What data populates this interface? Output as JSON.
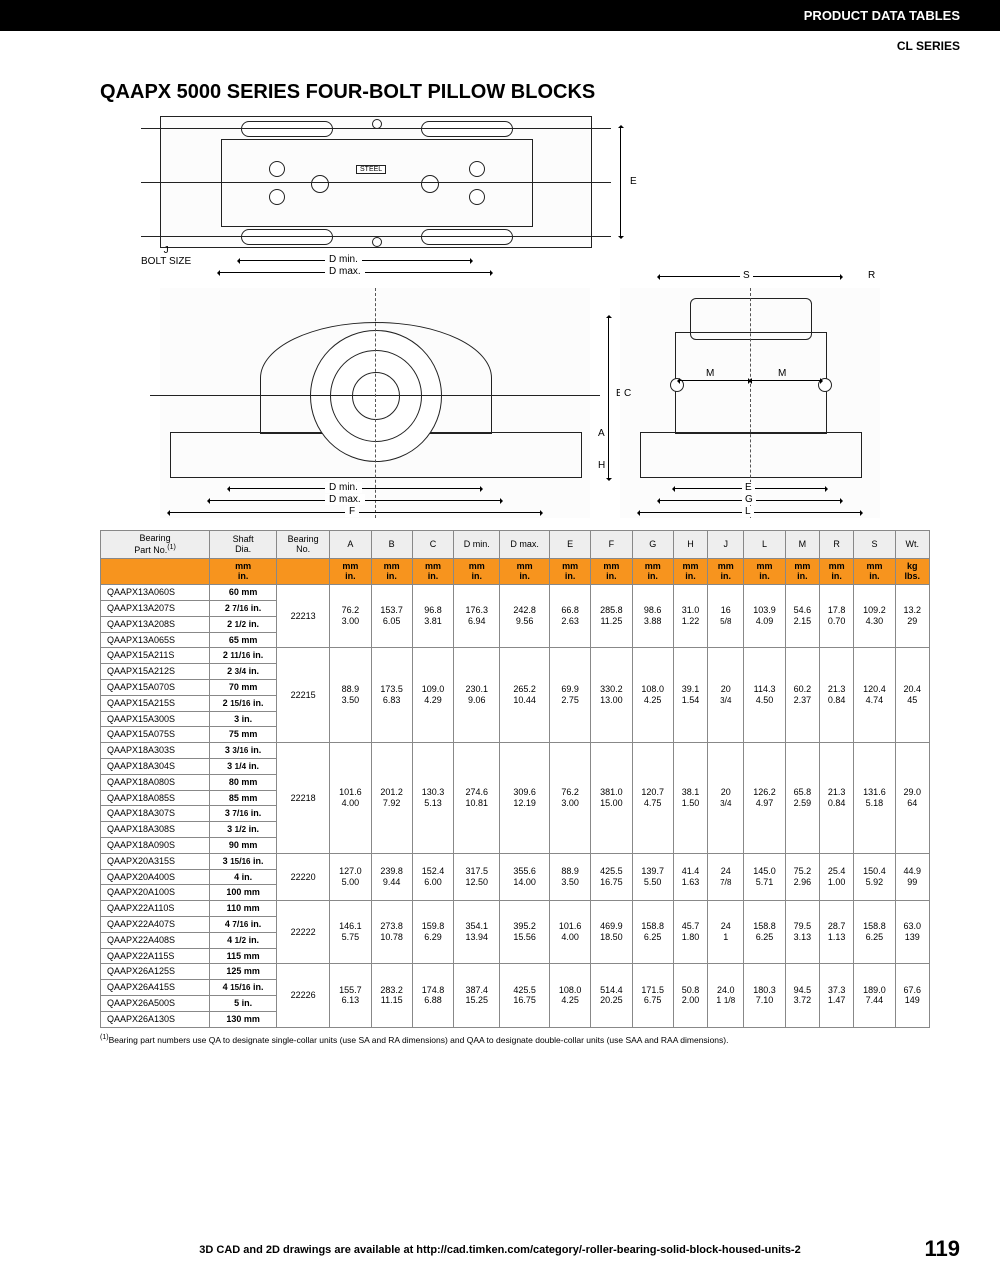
{
  "header": {
    "tables": "PRODUCT DATA TABLES",
    "series": "CL SERIES"
  },
  "title": "QAAPX 5000 SERIES FOUR-BOLT PILLOW BLOCKS",
  "diagram_labels": {
    "E": "E",
    "J": "J",
    "bolt_size": "BOLT SIZE",
    "Dmin": "D min.",
    "Dmax": "D max.",
    "F": "F",
    "B": "B",
    "A": "A",
    "H": "H",
    "S": "S",
    "R": "R",
    "M": "M",
    "C": "C",
    "G": "G",
    "L": "L",
    "steel": "STEEL"
  },
  "columns": [
    "Bearing Part No.",
    "Shaft Dia.",
    "Bearing No.",
    "A",
    "B",
    "C",
    "D min.",
    "D max.",
    "E",
    "F",
    "G",
    "H",
    "J",
    "L",
    "M",
    "R",
    "S",
    "Wt."
  ],
  "footnote_ref": "(1)",
  "units_row1": [
    "",
    "mm",
    "",
    "mm",
    "mm",
    "mm",
    "mm",
    "mm",
    "mm",
    "mm",
    "mm",
    "mm",
    "mm",
    "mm",
    "mm",
    "mm",
    "mm",
    "kg"
  ],
  "units_row2": [
    "",
    "in.",
    "",
    "in.",
    "in.",
    "in.",
    "in.",
    "in.",
    "in.",
    "in.",
    "in.",
    "in.",
    "in.",
    "in.",
    "in.",
    "in.",
    "in.",
    "lbs."
  ],
  "groups": [
    {
      "parts": [
        {
          "p": "QAAPX13A060S",
          "s": "60 mm"
        },
        {
          "p": "QAAPX13A207S",
          "s": "2 7/16 in."
        },
        {
          "p": "QAAPX13A208S",
          "s": "2 1/2 in."
        },
        {
          "p": "QAAPX13A065S",
          "s": "65 mm"
        }
      ],
      "bearing": "22213",
      "vals_mm": [
        "76.2",
        "153.7",
        "96.8",
        "176.3",
        "242.8",
        "66.8",
        "285.8",
        "98.6",
        "31.0",
        "16",
        "103.9",
        "54.6",
        "17.8",
        "109.2",
        "13.2"
      ],
      "vals_in": [
        "3.00",
        "6.05",
        "3.81",
        "6.94",
        "9.56",
        "2.63",
        "11.25",
        "3.88",
        "1.22",
        "5/8",
        "4.09",
        "2.15",
        "0.70",
        "4.30",
        "29"
      ]
    },
    {
      "parts": [
        {
          "p": "QAAPX15A211S",
          "s": "2 11/16 in."
        },
        {
          "p": "QAAPX15A212S",
          "s": "2 3/4 in."
        },
        {
          "p": "QAAPX15A070S",
          "s": "70 mm"
        },
        {
          "p": "QAAPX15A215S",
          "s": "2 15/16 in."
        },
        {
          "p": "QAAPX15A300S",
          "s": "3 in."
        },
        {
          "p": "QAAPX15A075S",
          "s": "75 mm"
        }
      ],
      "bearing": "22215",
      "vals_mm": [
        "88.9",
        "173.5",
        "109.0",
        "230.1",
        "265.2",
        "69.9",
        "330.2",
        "108.0",
        "39.1",
        "20",
        "114.3",
        "60.2",
        "21.3",
        "120.4",
        "20.4"
      ],
      "vals_in": [
        "3.50",
        "6.83",
        "4.29",
        "9.06",
        "10.44",
        "2.75",
        "13.00",
        "4.25",
        "1.54",
        "3/4",
        "4.50",
        "2.37",
        "0.84",
        "4.74",
        "45"
      ]
    },
    {
      "parts": [
        {
          "p": "QAAPX18A303S",
          "s": "3 3/16 in."
        },
        {
          "p": "QAAPX18A304S",
          "s": "3 1/4 in."
        },
        {
          "p": "QAAPX18A080S",
          "s": "80 mm"
        },
        {
          "p": "QAAPX18A085S",
          "s": "85 mm"
        },
        {
          "p": "QAAPX18A307S",
          "s": "3 7/16 in."
        },
        {
          "p": "QAAPX18A308S",
          "s": "3 1/2 in."
        },
        {
          "p": "QAAPX18A090S",
          "s": "90 mm"
        }
      ],
      "bearing": "22218",
      "vals_mm": [
        "101.6",
        "201.2",
        "130.3",
        "274.6",
        "309.6",
        "76.2",
        "381.0",
        "120.7",
        "38.1",
        "20",
        "126.2",
        "65.8",
        "21.3",
        "131.6",
        "29.0"
      ],
      "vals_in": [
        "4.00",
        "7.92",
        "5.13",
        "10.81",
        "12.19",
        "3.00",
        "15.00",
        "4.75",
        "1.50",
        "3/4",
        "4.97",
        "2.59",
        "0.84",
        "5.18",
        "64"
      ]
    },
    {
      "parts": [
        {
          "p": "QAAPX20A315S",
          "s": "3 15/16 in."
        },
        {
          "p": "QAAPX20A400S",
          "s": "4 in."
        },
        {
          "p": "QAAPX20A100S",
          "s": "100 mm"
        }
      ],
      "bearing": "22220",
      "vals_mm": [
        "127.0",
        "239.8",
        "152.4",
        "317.5",
        "355.6",
        "88.9",
        "425.5",
        "139.7",
        "41.4",
        "24",
        "145.0",
        "75.2",
        "25.4",
        "150.4",
        "44.9"
      ],
      "vals_in": [
        "5.00",
        "9.44",
        "6.00",
        "12.50",
        "14.00",
        "3.50",
        "16.75",
        "5.50",
        "1.63",
        "7/8",
        "5.71",
        "2.96",
        "1.00",
        "5.92",
        "99"
      ]
    },
    {
      "parts": [
        {
          "p": "QAAPX22A110S",
          "s": "110 mm"
        },
        {
          "p": "QAAPX22A407S",
          "s": "4 7/16 in."
        },
        {
          "p": "QAAPX22A408S",
          "s": "4 1/2 in."
        },
        {
          "p": "QAAPX22A115S",
          "s": "115 mm"
        }
      ],
      "bearing": "22222",
      "vals_mm": [
        "146.1",
        "273.8",
        "159.8",
        "354.1",
        "395.2",
        "101.6",
        "469.9",
        "158.8",
        "45.7",
        "24",
        "158.8",
        "79.5",
        "28.7",
        "158.8",
        "63.0"
      ],
      "vals_in": [
        "5.75",
        "10.78",
        "6.29",
        "13.94",
        "15.56",
        "4.00",
        "18.50",
        "6.25",
        "1.80",
        "1",
        "6.25",
        "3.13",
        "1.13",
        "6.25",
        "139"
      ]
    },
    {
      "parts": [
        {
          "p": "QAAPX26A125S",
          "s": "125 mm"
        },
        {
          "p": "QAAPX26A415S",
          "s": "4 15/16 in."
        },
        {
          "p": "QAAPX26A500S",
          "s": "5 in."
        },
        {
          "p": "QAAPX26A130S",
          "s": "130 mm"
        }
      ],
      "bearing": "22226",
      "vals_mm": [
        "155.7",
        "283.2",
        "174.8",
        "387.4",
        "425.5",
        "108.0",
        "514.4",
        "171.5",
        "50.8",
        "24.0",
        "180.3",
        "94.5",
        "37.3",
        "189.0",
        "67.6"
      ],
      "vals_in": [
        "6.13",
        "11.15",
        "6.88",
        "15.25",
        "16.75",
        "4.25",
        "20.25",
        "6.75",
        "2.00",
        "1 1/8",
        "7.10",
        "3.72",
        "1.47",
        "7.44",
        "149"
      ]
    }
  ],
  "footnote": "Bearing part numbers use QA to designate single-collar units (use SA and RA dimensions) and QAA to designate double-collar units (use SAA and RAA dimensions).",
  "footer_text": "3D CAD and 2D drawings are available at http://cad.timken.com/category/-roller-bearing-solid-block-housed-units-2",
  "page_number": "119"
}
